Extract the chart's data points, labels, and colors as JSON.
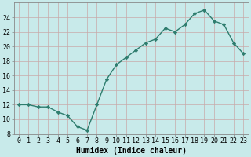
{
  "x": [
    0,
    1,
    2,
    3,
    4,
    5,
    6,
    7,
    8,
    9,
    10,
    11,
    12,
    13,
    14,
    15,
    16,
    17,
    18,
    19,
    20,
    21,
    22,
    23
  ],
  "y": [
    12,
    12,
    11.7,
    11.7,
    11,
    10.5,
    9,
    8.5,
    12,
    15.5,
    17.5,
    18.5,
    19.5,
    20.5,
    21,
    22.5,
    22,
    23,
    24.5,
    25,
    23.5,
    23,
    20.5,
    19
  ],
  "line_color": "#2e7d6e",
  "marker": "D",
  "marker_size": 2.2,
  "background_color": "#c8eaea",
  "grid_color": "#b0d0d0",
  "xlabel": "Humidex (Indice chaleur)",
  "xlabel_fontsize": 7,
  "ylim": [
    8,
    26
  ],
  "xlim": [
    -0.5,
    23.5
  ],
  "yticks": [
    8,
    10,
    12,
    14,
    16,
    18,
    20,
    22,
    24
  ],
  "xticks": [
    0,
    1,
    2,
    3,
    4,
    5,
    6,
    7,
    8,
    9,
    10,
    11,
    12,
    13,
    14,
    15,
    16,
    17,
    18,
    19,
    20,
    21,
    22,
    23
  ],
  "tick_fontsize": 6,
  "line_width": 1.0
}
